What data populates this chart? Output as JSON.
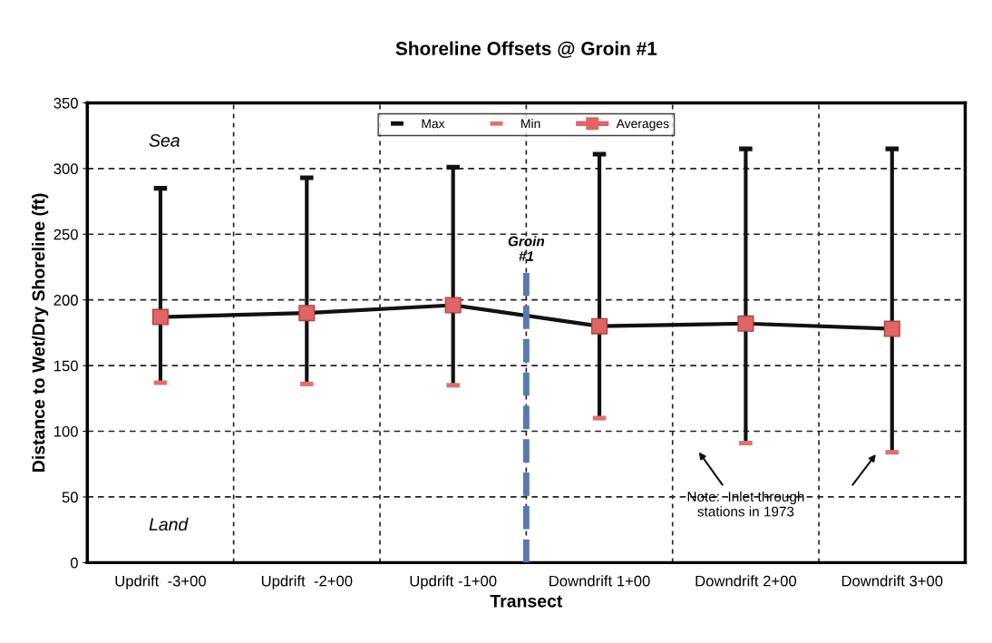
{
  "chart_data": {
    "type": "line",
    "title": "Shoreline Offsets @ Groin #1",
    "xlabel": "Transect",
    "ylabel": "Distance to Wet/Dry Shoreline (ft)",
    "categories": [
      "Updrift  -3+00",
      "Updrift  -2+00",
      "Updrift -1+00",
      "Downdrift 1+00",
      "Downdrift 2+00",
      "Downdrift 3+00"
    ],
    "series": [
      {
        "name": "Max",
        "type": "scatter",
        "color": "#111111",
        "values": [
          285,
          293,
          301,
          311,
          315,
          315
        ]
      },
      {
        "name": "Min",
        "type": "scatter",
        "color": "#e07070",
        "values": [
          137,
          136,
          135,
          110,
          91,
          84
        ]
      },
      {
        "name": "Averages",
        "color": "#e06666",
        "marker": "square",
        "values": [
          187,
          190,
          196,
          180,
          182,
          178
        ]
      }
    ],
    "ylim": [
      0,
      350
    ],
    "yticks": [
      0,
      50,
      100,
      150,
      200,
      250,
      300,
      350
    ],
    "grid": true,
    "legend": "top",
    "annotations": [
      "Sea",
      "Land",
      "Note:  Inlet through\nstations in 1973",
      "Groin\n#1"
    ]
  }
}
